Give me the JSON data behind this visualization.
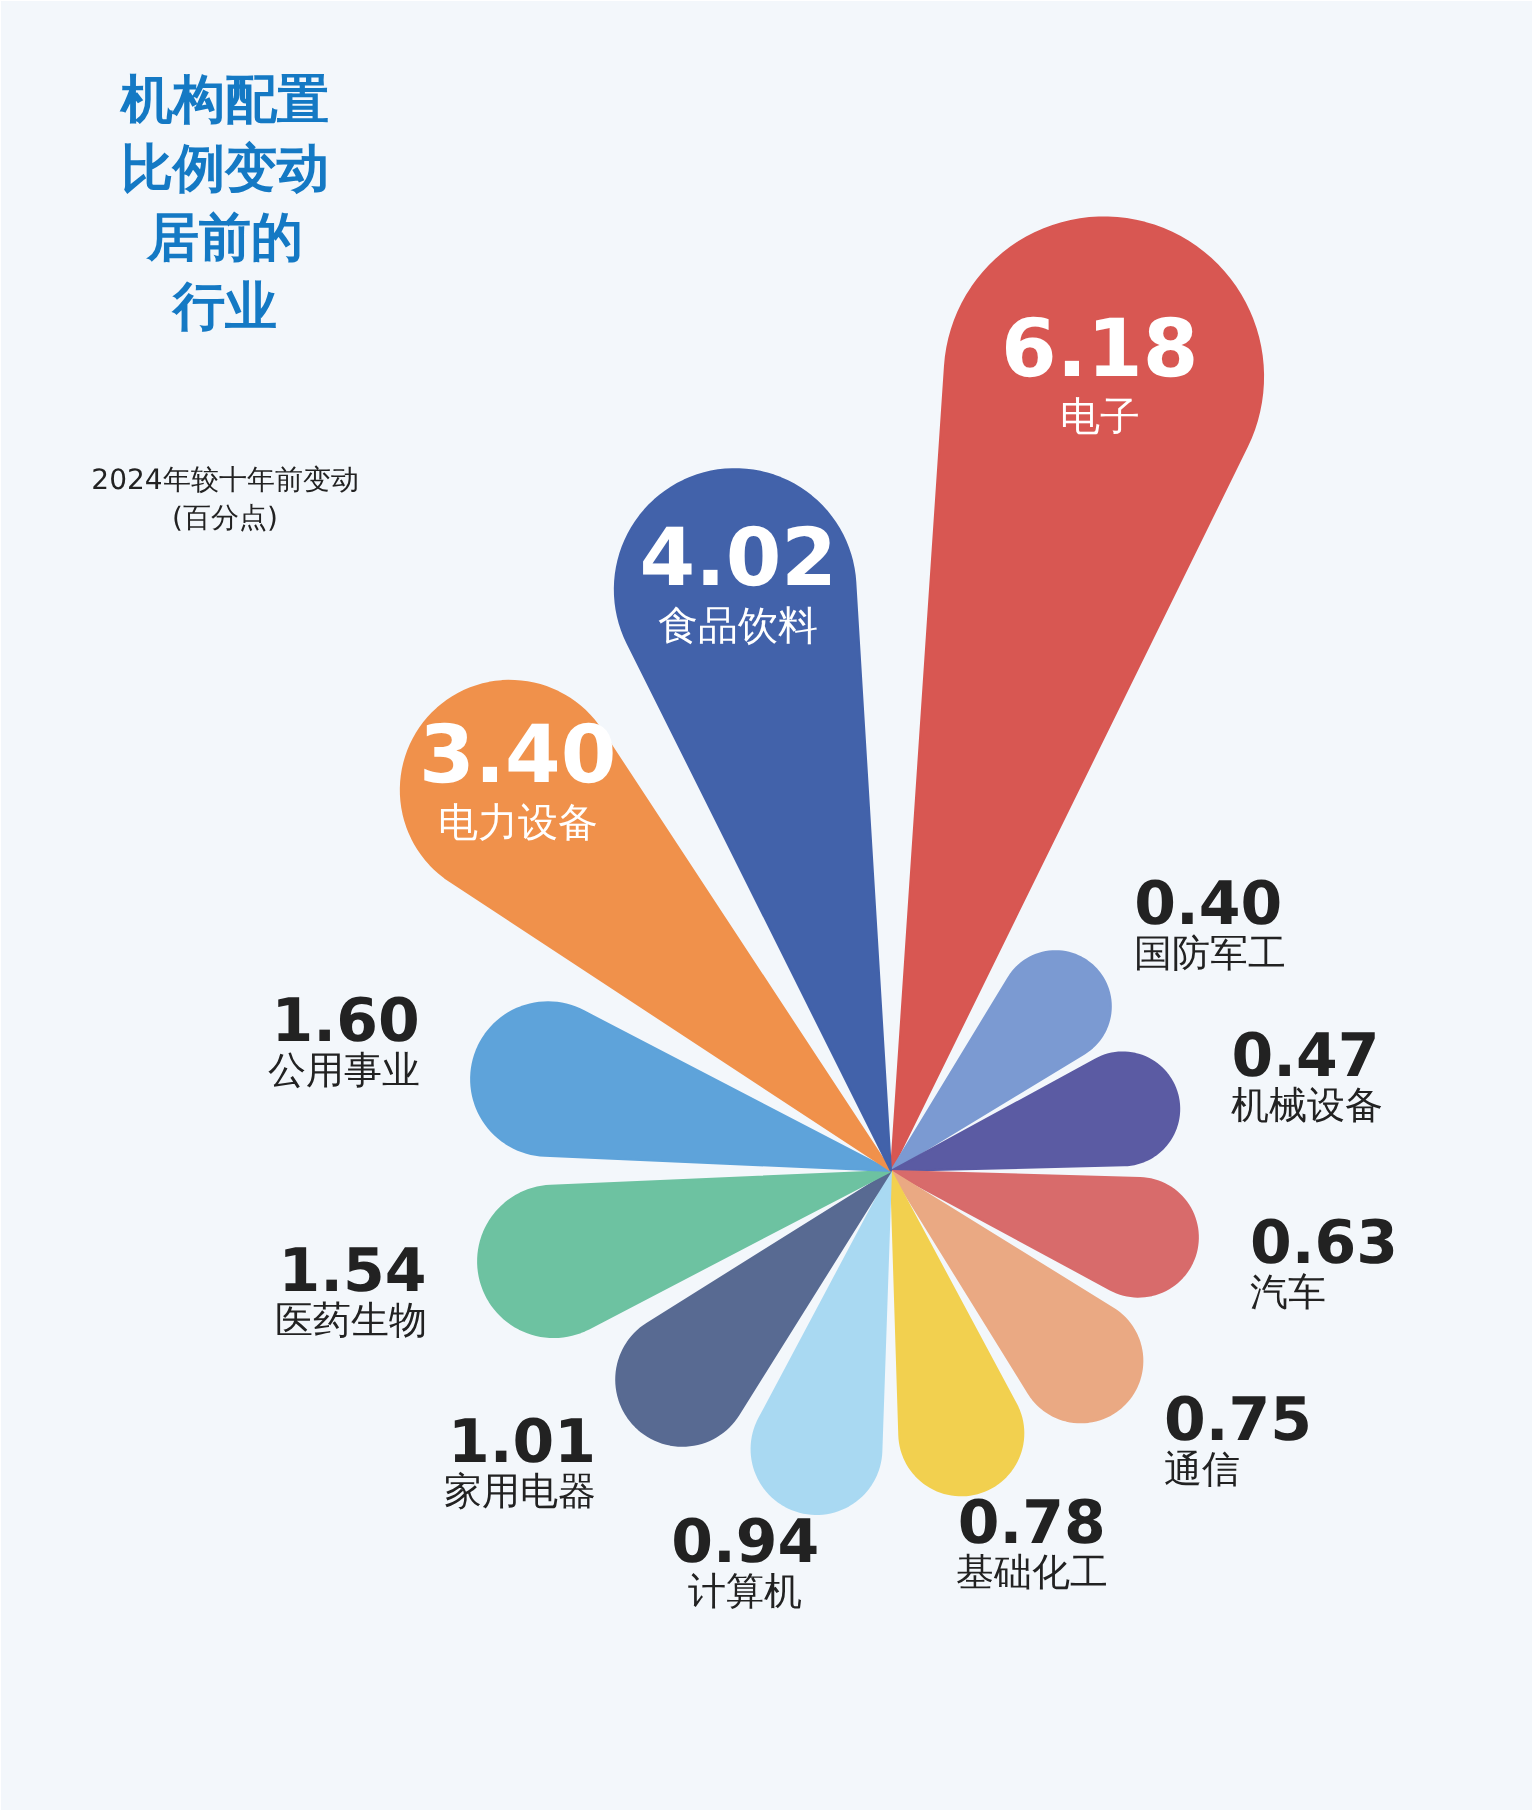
{
  "chart_data": {
    "type": "other",
    "title": "机构配置比例变动居前的行业",
    "subtitle": "2024年较十年前变动\n(百分点)",
    "categories": [
      "电子",
      "国防军工",
      "机械设备",
      "汽车",
      "通信",
      "基础化工",
      "计算机",
      "家用电器",
      "医药生物",
      "公用事业",
      "电力设备",
      "食品饮料"
    ],
    "values": [
      6.18,
      0.4,
      0.47,
      0.63,
      0.75,
      0.78,
      0.94,
      1.01,
      1.54,
      1.6,
      3.4,
      4.02
    ],
    "value_labels": [
      "6.18",
      "0.40",
      "0.47",
      "0.63",
      "0.75",
      "0.78",
      "0.94",
      "1.01",
      "1.54",
      "1.60",
      "3.40",
      "4.02"
    ],
    "colors": [
      "#d85752",
      "#7b9ad2",
      "#5b5ba3",
      "#d86b6b",
      "#eaa983",
      "#f2d04f",
      "#a9d9f2",
      "#586a92",
      "#6dc2a1",
      "#5ea3da",
      "#f0914b",
      "#4262aa"
    ]
  }
}
